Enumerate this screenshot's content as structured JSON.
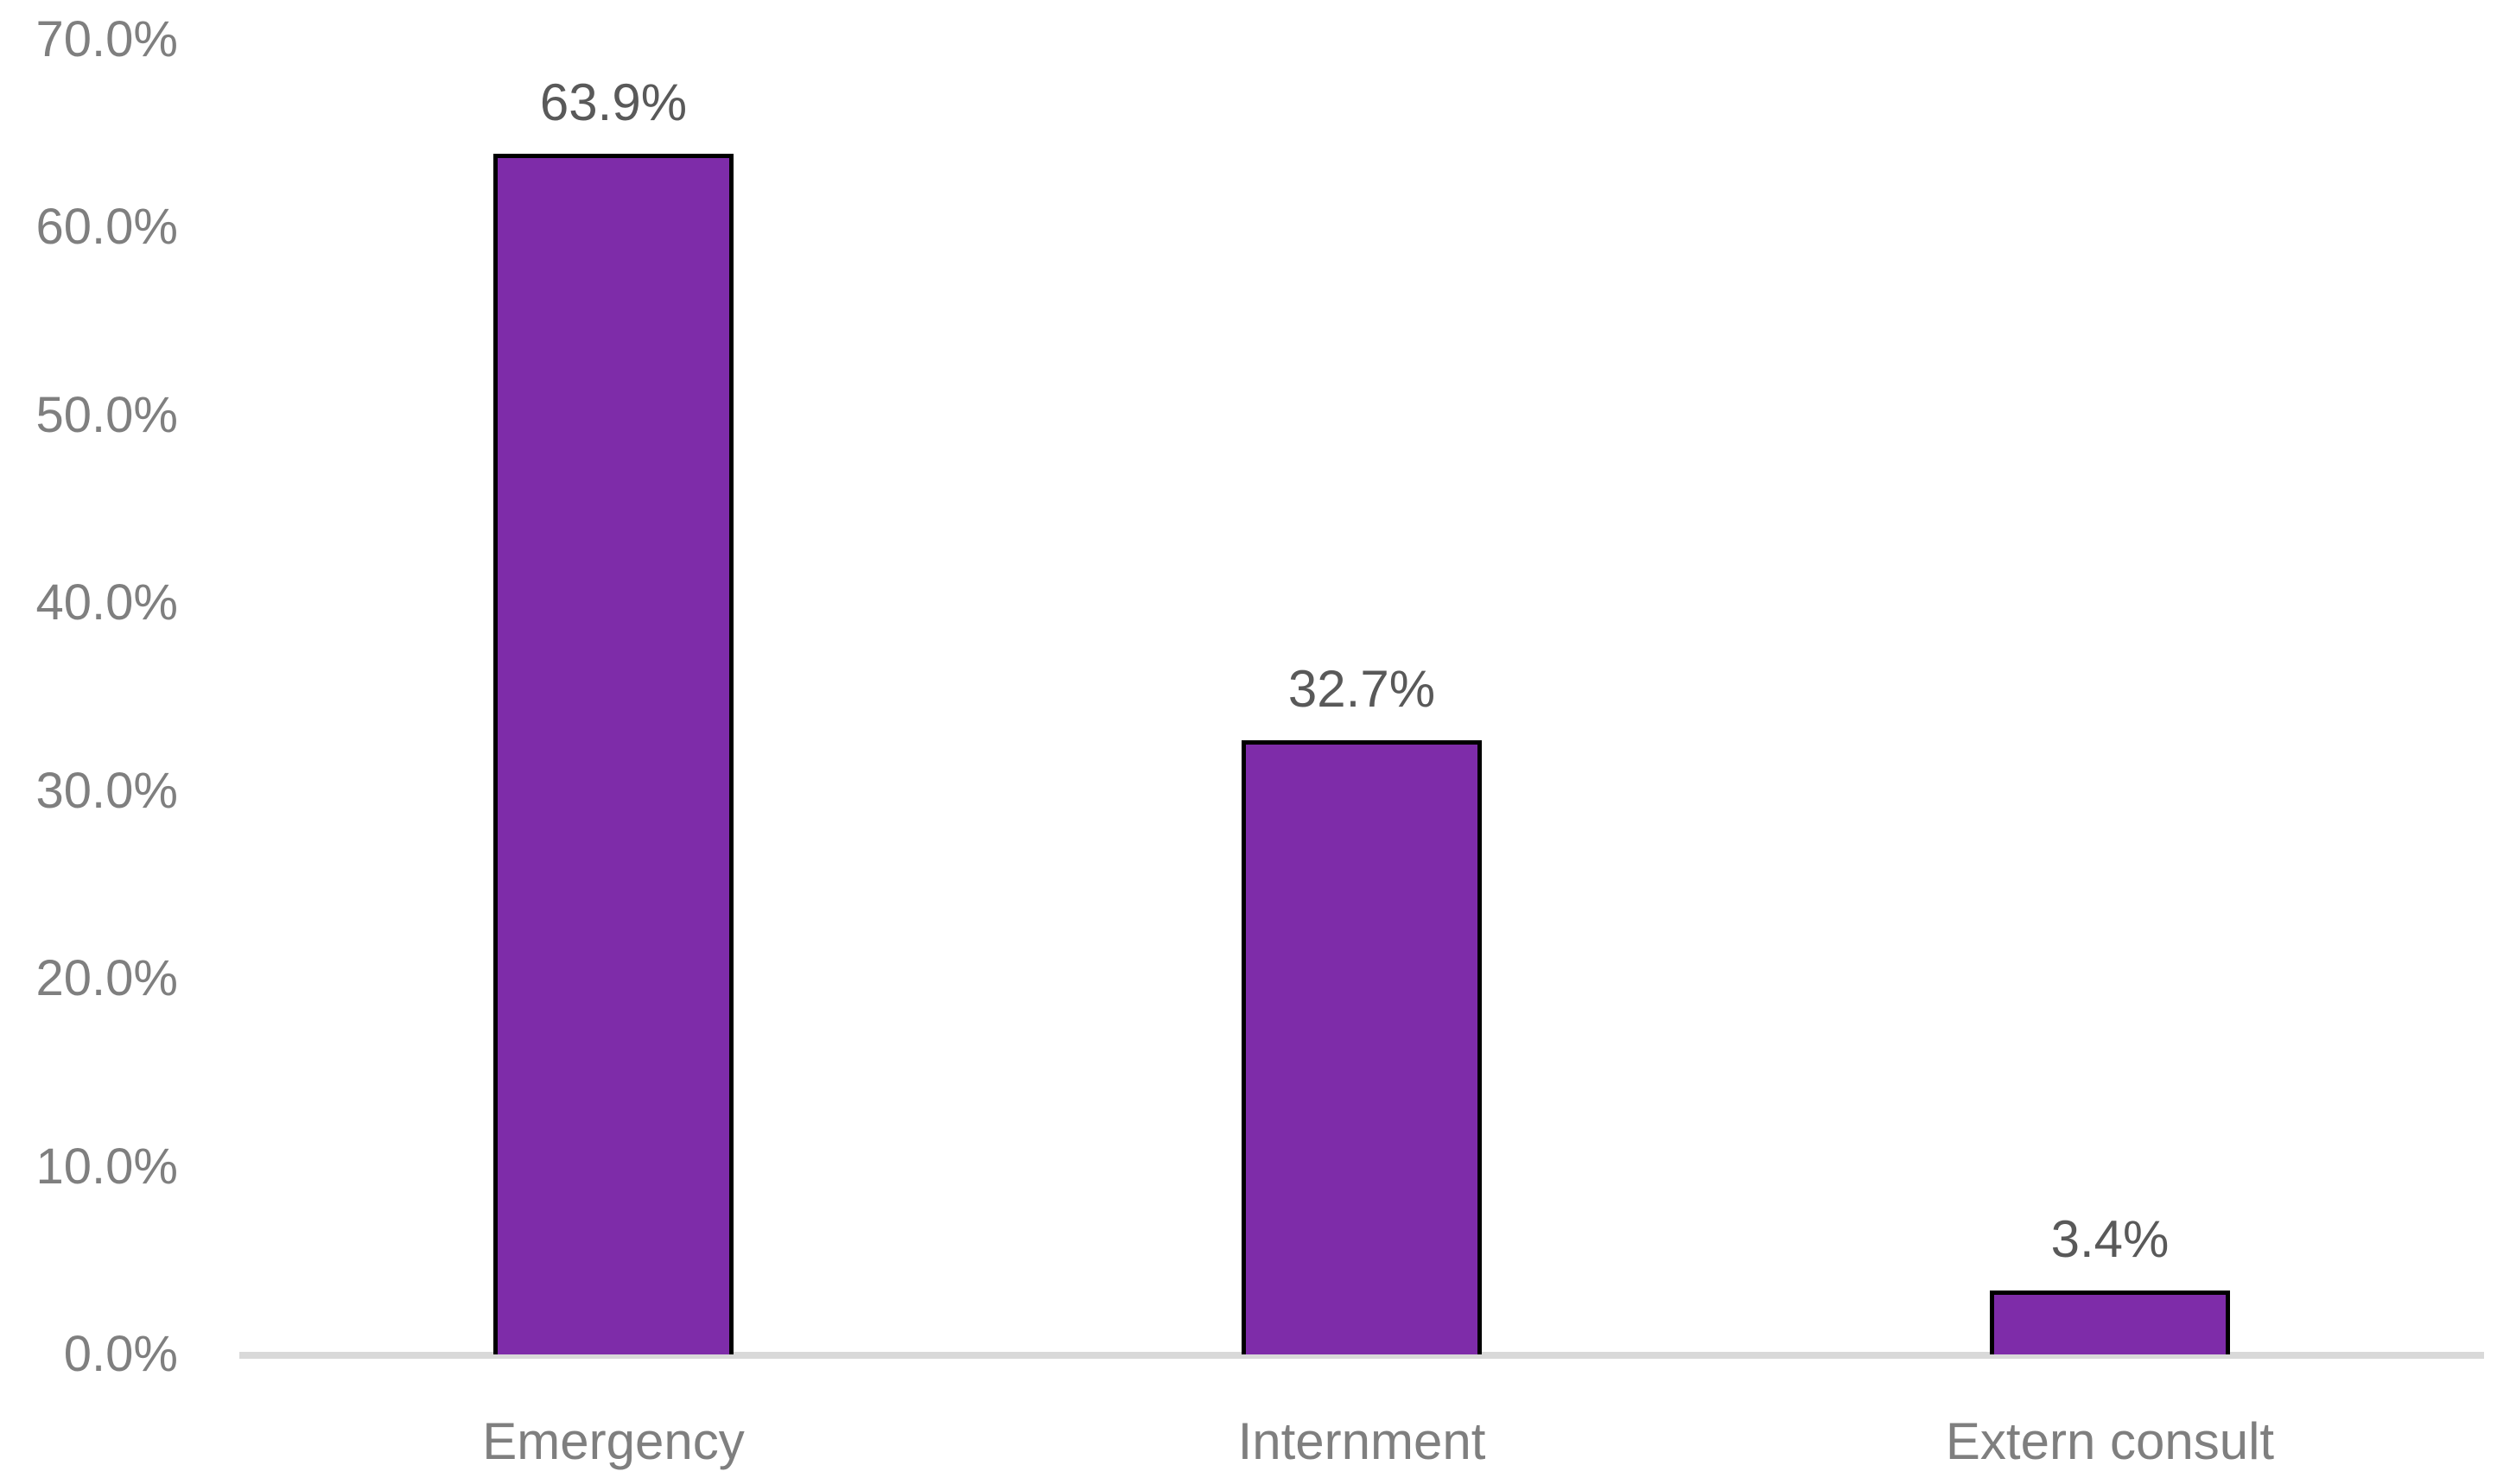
{
  "chart_data": {
    "type": "bar",
    "title": "",
    "xlabel": "",
    "ylabel": "",
    "categories": [
      "Emergency",
      "Internment",
      "Extern consult"
    ],
    "values": [
      63.9,
      32.7,
      3.4
    ],
    "data_labels": [
      "63.9%",
      "32.7%",
      "3.4%"
    ],
    "yticks": [
      "0.0%",
      "10.0%",
      "20.0%",
      "30.0%",
      "40.0%",
      "50.0%",
      "60.0%",
      "70.0%"
    ],
    "ylim": [
      0,
      70
    ],
    "ytick_step": 10,
    "grid": false,
    "legend": false,
    "colors": {
      "bar_fill": "#7e2ca9",
      "bar_border": "#000000",
      "axis_line": "#d9d9d9",
      "tick_label": "#7f7f7f",
      "data_label": "#595959",
      "background": "#ffffff"
    }
  }
}
